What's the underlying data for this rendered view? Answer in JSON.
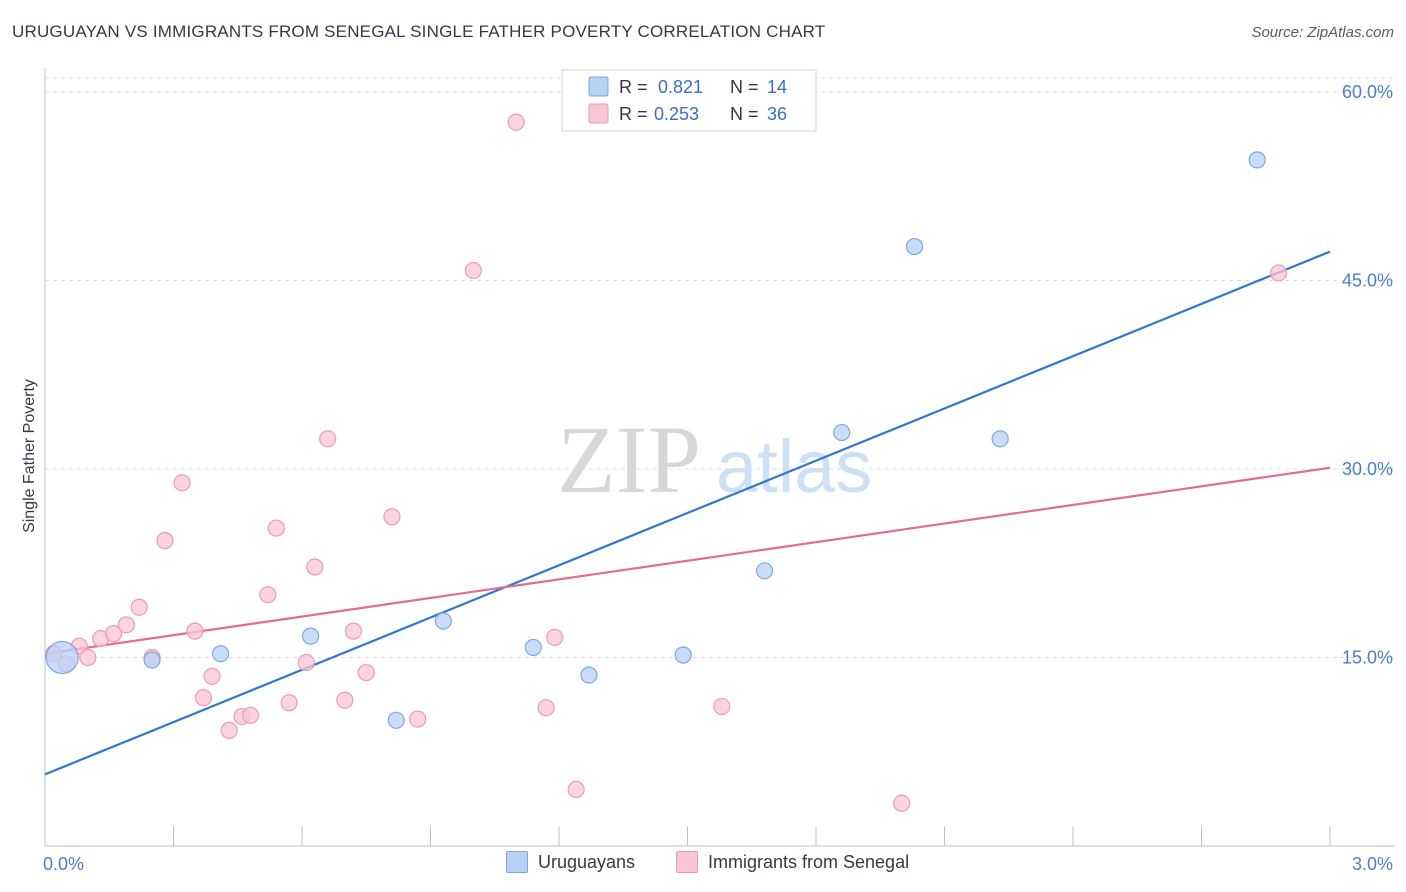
{
  "header": {
    "title": "URUGUAYAN VS IMMIGRANTS FROM SENEGAL SINGLE FATHER POVERTY CORRELATION CHART",
    "source": "Source: ZipAtlas.com"
  },
  "watermark": {
    "zip": "ZIP",
    "atlas": "atlas"
  },
  "colors": {
    "blue_fill": "#b8d2f5",
    "blue_stroke": "#7ea8e0",
    "blue_line": "#2f78d0",
    "pink_fill": "#f9c6d6",
    "pink_stroke": "#ee9ab5",
    "pink_line": "#e46a95",
    "grid": "#dcdcdc",
    "tick_text": "#4a7ec8"
  },
  "stats_legend": [
    {
      "r_label": "R =",
      "r_value": "0.821",
      "n_label": "N =",
      "n_value": "14"
    },
    {
      "r_label": "R =",
      "r_value": "0.253",
      "n_label": "N =",
      "n_value": "36"
    }
  ],
  "chart_data": {
    "type": "scatter",
    "title": "URUGUAYAN VS IMMIGRANTS FROM SENEGAL SINGLE FATHER POVERTY CORRELATION CHART",
    "xlabel": "",
    "ylabel": "Single Father Poverty",
    "xlim": [
      0,
      3.0
    ],
    "ylim": [
      0,
      60
    ],
    "x_tick_labels": [
      "0.0%",
      "3.0%"
    ],
    "y_ticks": [
      15,
      30,
      45,
      60
    ],
    "y_tick_labels": [
      "15.0%",
      "30.0%",
      "45.0%",
      "60.0%"
    ],
    "grid": true,
    "legend_position": "bottom-center",
    "series": [
      {
        "name": "Uruguayans",
        "color": "#b8d2f5",
        "trend": {
          "x": [
            0.0,
            3.0
          ],
          "y": [
            5.7,
            47.3
          ]
        },
        "points": [
          {
            "x": 0.04,
            "y": 15.0,
            "big": true
          },
          {
            "x": 0.25,
            "y": 14.8
          },
          {
            "x": 0.41,
            "y": 15.3
          },
          {
            "x": 0.62,
            "y": 16.7
          },
          {
            "x": 0.82,
            "y": 10.0
          },
          {
            "x": 0.93,
            "y": 17.9
          },
          {
            "x": 1.14,
            "y": 15.8
          },
          {
            "x": 1.27,
            "y": 13.6
          },
          {
            "x": 1.49,
            "y": 15.2
          },
          {
            "x": 1.68,
            "y": 21.9
          },
          {
            "x": 1.86,
            "y": 32.9
          },
          {
            "x": 2.03,
            "y": 47.7
          },
          {
            "x": 2.23,
            "y": 32.4
          },
          {
            "x": 2.83,
            "y": 54.6
          }
        ]
      },
      {
        "name": "Immigrants from Senegal",
        "color": "#f9c6d6",
        "trend": {
          "x": [
            0.0,
            3.0
          ],
          "y": [
            15.3,
            30.1
          ]
        },
        "points": [
          {
            "x": 0.02,
            "y": 15.3
          },
          {
            "x": 0.05,
            "y": 14.5
          },
          {
            "x": 0.08,
            "y": 15.9
          },
          {
            "x": 0.1,
            "y": 15.0
          },
          {
            "x": 0.13,
            "y": 16.5
          },
          {
            "x": 0.16,
            "y": 16.9
          },
          {
            "x": 0.19,
            "y": 17.6
          },
          {
            "x": 0.22,
            "y": 19.0
          },
          {
            "x": 0.25,
            "y": 15.0
          },
          {
            "x": 0.28,
            "y": 24.3
          },
          {
            "x": 0.32,
            "y": 28.9
          },
          {
            "x": 0.35,
            "y": 17.1
          },
          {
            "x": 0.37,
            "y": 11.8
          },
          {
            "x": 0.39,
            "y": 13.5
          },
          {
            "x": 0.43,
            "y": 9.2
          },
          {
            "x": 0.46,
            "y": 10.3
          },
          {
            "x": 0.48,
            "y": 10.4
          },
          {
            "x": 0.52,
            "y": 20.0
          },
          {
            "x": 0.54,
            "y": 25.3
          },
          {
            "x": 0.57,
            "y": 11.4
          },
          {
            "x": 0.61,
            "y": 14.6
          },
          {
            "x": 0.63,
            "y": 22.2
          },
          {
            "x": 0.66,
            "y": 32.4
          },
          {
            "x": 0.7,
            "y": 11.6
          },
          {
            "x": 0.72,
            "y": 17.1
          },
          {
            "x": 0.75,
            "y": 13.8
          },
          {
            "x": 0.81,
            "y": 26.2
          },
          {
            "x": 0.87,
            "y": 10.1
          },
          {
            "x": 1.0,
            "y": 45.8
          },
          {
            "x": 1.1,
            "y": 57.6
          },
          {
            "x": 1.17,
            "y": 11.0
          },
          {
            "x": 1.19,
            "y": 16.6
          },
          {
            "x": 1.24,
            "y": 4.5
          },
          {
            "x": 1.58,
            "y": 11.1
          },
          {
            "x": 2.0,
            "y": 3.4
          },
          {
            "x": 2.88,
            "y": 45.6
          }
        ]
      }
    ]
  }
}
